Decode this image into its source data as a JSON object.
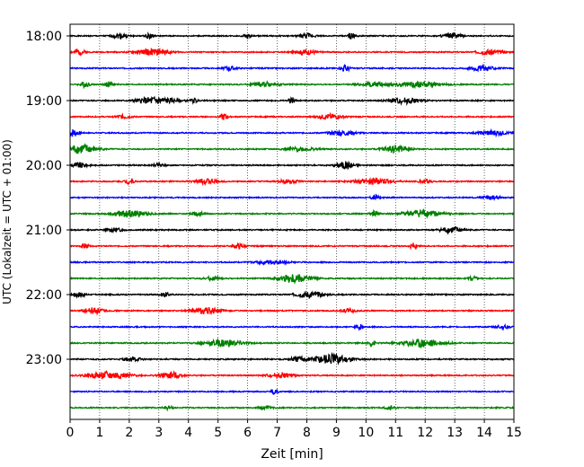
{
  "chart_data": {
    "type": "line",
    "xlabel": "Zeit  [min]",
    "ylabel": "UTC (Lokalzeit = UTC + 01:00)",
    "xlim": [
      0,
      15
    ],
    "x_ticks": [
      0,
      1,
      2,
      3,
      4,
      5,
      6,
      7,
      8,
      9,
      10,
      11,
      12,
      13,
      14,
      15
    ],
    "y_tick_labels": [
      "18:00",
      "19:00",
      "20:00",
      "21:00",
      "22:00",
      "23:00"
    ],
    "trace_interval_minutes": 15,
    "grid": "vertical dotted at each minute",
    "color_cycle": [
      "#000000",
      "#ff0000",
      "#0000ff",
      "#008000"
    ],
    "traces": [
      {
        "start": "18:00",
        "events": [
          [
            1.7,
            0.28,
            0.55
          ],
          [
            2.7,
            0.35,
            0.25
          ],
          [
            6.0,
            0.25,
            0.25
          ],
          [
            8.0,
            0.28,
            0.5
          ],
          [
            9.5,
            0.35,
            0.25
          ],
          [
            12.9,
            0.3,
            0.6
          ]
        ]
      },
      {
        "start": "18:15",
        "events": [
          [
            0.3,
            0.35,
            0.4
          ],
          [
            2.8,
            0.35,
            1.1
          ],
          [
            8.0,
            0.25,
            0.7
          ],
          [
            14.2,
            0.3,
            0.8
          ]
        ]
      },
      {
        "start": "18:30",
        "events": [
          [
            5.4,
            0.25,
            0.4
          ],
          [
            9.3,
            0.4,
            0.3
          ],
          [
            13.9,
            0.3,
            0.8
          ]
        ]
      },
      {
        "start": "18:45",
        "events": [
          [
            0.5,
            0.3,
            0.3
          ],
          [
            1.3,
            0.3,
            0.3
          ],
          [
            6.6,
            0.3,
            0.8
          ],
          [
            10.2,
            0.22,
            0.8
          ],
          [
            11.7,
            0.3,
            1.6
          ]
        ]
      },
      {
        "start": "19:00",
        "events": [
          [
            2.9,
            0.45,
            1.2
          ],
          [
            4.2,
            0.25,
            0.2
          ],
          [
            7.5,
            0.4,
            0.2
          ],
          [
            11.3,
            0.35,
            1.0
          ]
        ]
      },
      {
        "start": "19:15",
        "events": [
          [
            1.8,
            0.22,
            0.5
          ],
          [
            5.2,
            0.4,
            0.25
          ],
          [
            8.8,
            0.3,
            0.8
          ]
        ]
      },
      {
        "start": "19:30",
        "events": [
          [
            0.1,
            0.5,
            0.35
          ],
          [
            9.2,
            0.3,
            0.8
          ],
          [
            14.3,
            0.3,
            0.9
          ]
        ]
      },
      {
        "start": "19:45",
        "events": [
          [
            0.4,
            0.6,
            0.9
          ],
          [
            11.0,
            0.45,
            0.8
          ],
          [
            7.8,
            0.22,
            1.0
          ]
        ]
      },
      {
        "start": "20:00",
        "events": [
          [
            0.3,
            0.3,
            0.6
          ],
          [
            9.3,
            0.45,
            0.6
          ],
          [
            3.0,
            0.2,
            0.4
          ]
        ]
      },
      {
        "start": "20:15",
        "events": [
          [
            2.0,
            0.3,
            0.3
          ],
          [
            4.6,
            0.32,
            0.7
          ],
          [
            7.4,
            0.28,
            0.6
          ],
          [
            10.3,
            0.4,
            1.1
          ],
          [
            12.0,
            0.25,
            0.4
          ]
        ]
      },
      {
        "start": "20:30",
        "events": [
          [
            10.3,
            0.3,
            0.25
          ],
          [
            14.2,
            0.22,
            0.6
          ]
        ]
      },
      {
        "start": "20:45",
        "events": [
          [
            2.0,
            0.38,
            1.2
          ],
          [
            4.3,
            0.22,
            0.4
          ],
          [
            10.3,
            0.35,
            0.25
          ],
          [
            11.9,
            0.45,
            1.2
          ]
        ]
      },
      {
        "start": "21:00",
        "events": [
          [
            1.5,
            0.22,
            0.6
          ],
          [
            12.9,
            0.4,
            0.7
          ]
        ]
      },
      {
        "start": "21:15",
        "events": [
          [
            0.5,
            0.32,
            0.2
          ],
          [
            5.7,
            0.3,
            0.4
          ],
          [
            11.6,
            0.4,
            0.2
          ]
        ]
      },
      {
        "start": "21:30",
        "events": [
          [
            6.8,
            0.22,
            1.0
          ]
        ]
      },
      {
        "start": "21:45",
        "events": [
          [
            4.8,
            0.22,
            0.5
          ],
          [
            7.6,
            0.55,
            1.0
          ],
          [
            13.6,
            0.35,
            0.25
          ]
        ]
      },
      {
        "start": "22:00",
        "events": [
          [
            0.3,
            0.3,
            0.4
          ],
          [
            3.2,
            0.25,
            0.3
          ],
          [
            8.1,
            0.35,
            0.9
          ]
        ]
      },
      {
        "start": "22:15",
        "events": [
          [
            0.8,
            0.38,
            0.6
          ],
          [
            4.6,
            0.4,
            0.9
          ],
          [
            9.4,
            0.22,
            0.5
          ]
        ]
      },
      {
        "start": "22:30",
        "events": [
          [
            9.8,
            0.35,
            0.25
          ],
          [
            14.6,
            0.2,
            0.5
          ]
        ]
      },
      {
        "start": "22:45",
        "events": [
          [
            5.2,
            0.45,
            1.2
          ],
          [
            10.2,
            0.32,
            0.25
          ],
          [
            11.9,
            0.5,
            1.3
          ]
        ]
      },
      {
        "start": "23:00",
        "events": [
          [
            2.1,
            0.22,
            0.6
          ],
          [
            8.8,
            0.6,
            1.3
          ],
          [
            7.7,
            0.3,
            0.5
          ]
        ]
      },
      {
        "start": "23:15",
        "events": [
          [
            1.3,
            0.45,
            1.3
          ],
          [
            3.4,
            0.4,
            0.7
          ],
          [
            7.1,
            0.3,
            0.8
          ]
        ]
      },
      {
        "start": "23:30",
        "events": [
          [
            6.9,
            0.38,
            0.2
          ]
        ]
      },
      {
        "start": "23:45",
        "events": [
          [
            3.3,
            0.2,
            0.3
          ],
          [
            6.6,
            0.2,
            0.4
          ],
          [
            10.8,
            0.25,
            0.3
          ]
        ]
      }
    ]
  }
}
